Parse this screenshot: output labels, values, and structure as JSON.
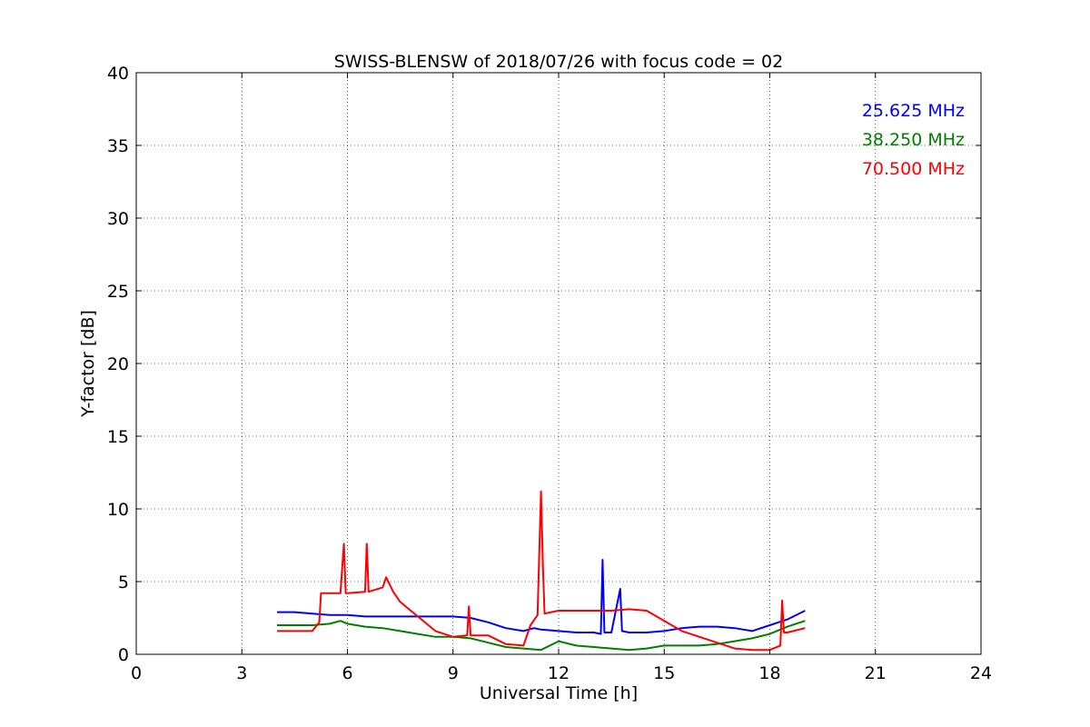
{
  "chart_data": {
    "type": "line",
    "title": "SWISS-BLENSW of 2018/07/26 with focus code = 02",
    "xlabel": "Universal Time [h]",
    "ylabel": "Y-factor [dB]",
    "xlim": [
      0,
      24
    ],
    "ylim": [
      0,
      40
    ],
    "xticks": [
      0,
      3,
      6,
      9,
      12,
      15,
      18,
      21,
      24
    ],
    "yticks": [
      0,
      5,
      10,
      15,
      20,
      25,
      30,
      35,
      40
    ],
    "xtick_labels": [
      "0",
      "3",
      "6",
      "9",
      "12",
      "15",
      "18",
      "21",
      "24"
    ],
    "ytick_labels": [
      "0",
      "5",
      "10",
      "15",
      "20",
      "25",
      "30",
      "35",
      "40"
    ],
    "grid": true,
    "legend_position": "top-right",
    "series": [
      {
        "name": "25.625 MHz",
        "color": "#0000ff",
        "points": [
          [
            4.0,
            2.9
          ],
          [
            4.5,
            2.9
          ],
          [
            5.0,
            2.8
          ],
          [
            5.5,
            2.7
          ],
          [
            6.0,
            2.7
          ],
          [
            6.5,
            2.6
          ],
          [
            7.0,
            2.6
          ],
          [
            7.5,
            2.6
          ],
          [
            8.0,
            2.6
          ],
          [
            8.5,
            2.6
          ],
          [
            9.0,
            2.6
          ],
          [
            9.5,
            2.5
          ],
          [
            10.0,
            2.2
          ],
          [
            10.5,
            1.8
          ],
          [
            11.0,
            1.6
          ],
          [
            11.3,
            1.8
          ],
          [
            11.5,
            1.7
          ],
          [
            12.0,
            1.6
          ],
          [
            12.5,
            1.5
          ],
          [
            13.0,
            1.5
          ],
          [
            13.2,
            1.4
          ],
          [
            13.25,
            6.5
          ],
          [
            13.3,
            1.5
          ],
          [
            13.5,
            1.5
          ],
          [
            13.75,
            4.5
          ],
          [
            13.8,
            1.6
          ],
          [
            14.0,
            1.5
          ],
          [
            14.5,
            1.5
          ],
          [
            15.0,
            1.6
          ],
          [
            15.5,
            1.8
          ],
          [
            16.0,
            1.9
          ],
          [
            16.5,
            1.9
          ],
          [
            17.0,
            1.8
          ],
          [
            17.5,
            1.6
          ],
          [
            18.0,
            2.0
          ],
          [
            18.5,
            2.4
          ],
          [
            19.0,
            3.0
          ]
        ]
      },
      {
        "name": "38.250 MHz",
        "color": "#008000",
        "points": [
          [
            4.0,
            2.0
          ],
          [
            4.5,
            2.0
          ],
          [
            5.0,
            2.0
          ],
          [
            5.5,
            2.1
          ],
          [
            5.8,
            2.3
          ],
          [
            6.0,
            2.1
          ],
          [
            6.5,
            1.9
          ],
          [
            7.0,
            1.8
          ],
          [
            7.5,
            1.6
          ],
          [
            8.0,
            1.4
          ],
          [
            8.5,
            1.2
          ],
          [
            9.0,
            1.2
          ],
          [
            9.5,
            1.1
          ],
          [
            10.0,
            0.8
          ],
          [
            10.5,
            0.5
          ],
          [
            11.0,
            0.4
          ],
          [
            11.5,
            0.3
          ],
          [
            12.0,
            0.9
          ],
          [
            12.5,
            0.6
          ],
          [
            13.0,
            0.5
          ],
          [
            13.5,
            0.4
          ],
          [
            14.0,
            0.3
          ],
          [
            14.5,
            0.4
          ],
          [
            15.0,
            0.6
          ],
          [
            15.5,
            0.6
          ],
          [
            16.0,
            0.6
          ],
          [
            16.5,
            0.7
          ],
          [
            17.0,
            0.9
          ],
          [
            17.5,
            1.1
          ],
          [
            18.0,
            1.4
          ],
          [
            18.5,
            1.9
          ],
          [
            19.0,
            2.3
          ]
        ]
      },
      {
        "name": "70.500 MHz",
        "color": "#ff0000",
        "points": [
          [
            4.0,
            1.6
          ],
          [
            4.5,
            1.6
          ],
          [
            5.0,
            1.6
          ],
          [
            5.2,
            2.2
          ],
          [
            5.25,
            4.2
          ],
          [
            5.5,
            4.2
          ],
          [
            5.8,
            4.2
          ],
          [
            5.9,
            7.6
          ],
          [
            5.95,
            4.2
          ],
          [
            6.0,
            4.2
          ],
          [
            6.5,
            4.3
          ],
          [
            6.55,
            7.6
          ],
          [
            6.6,
            4.3
          ],
          [
            7.0,
            4.6
          ],
          [
            7.1,
            5.3
          ],
          [
            7.3,
            4.3
          ],
          [
            7.5,
            3.6
          ],
          [
            8.0,
            2.6
          ],
          [
            8.5,
            1.6
          ],
          [
            9.0,
            1.2
          ],
          [
            9.4,
            1.3
          ],
          [
            9.45,
            3.3
          ],
          [
            9.5,
            1.3
          ],
          [
            10.0,
            1.3
          ],
          [
            10.5,
            0.7
          ],
          [
            11.0,
            0.6
          ],
          [
            11.2,
            2.0
          ],
          [
            11.4,
            2.7
          ],
          [
            11.5,
            11.2
          ],
          [
            11.55,
            6.3
          ],
          [
            11.6,
            2.8
          ],
          [
            12.0,
            3.0
          ],
          [
            12.5,
            3.0
          ],
          [
            13.0,
            3.0
          ],
          [
            13.5,
            3.0
          ],
          [
            14.0,
            3.1
          ],
          [
            14.5,
            3.0
          ],
          [
            15.0,
            2.3
          ],
          [
            15.5,
            1.6
          ],
          [
            16.0,
            1.2
          ],
          [
            16.5,
            0.8
          ],
          [
            17.0,
            0.4
          ],
          [
            17.5,
            0.3
          ],
          [
            18.0,
            0.3
          ],
          [
            18.3,
            0.6
          ],
          [
            18.35,
            3.7
          ],
          [
            18.4,
            1.5
          ],
          [
            18.5,
            1.5
          ],
          [
            19.0,
            1.8
          ]
        ]
      }
    ]
  }
}
